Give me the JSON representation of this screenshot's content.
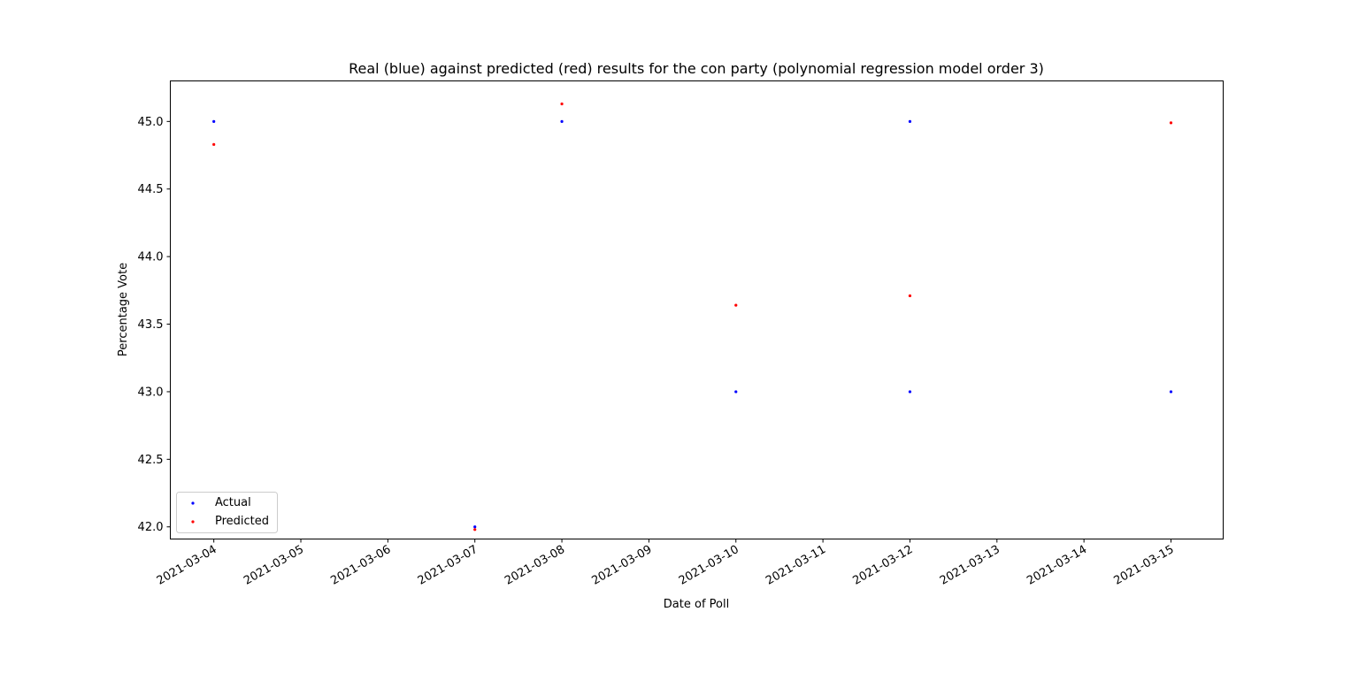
{
  "chart_data": {
    "type": "scatter",
    "title": "Real (blue) against predicted (red) results for the con party (polynomial regression model order 3)",
    "xlabel": "Date of Poll",
    "ylabel": "Percentage Vote",
    "x_ticks": [
      "2021-03-04",
      "2021-03-05",
      "2021-03-06",
      "2021-03-07",
      "2021-03-08",
      "2021-03-09",
      "2021-03-10",
      "2021-03-11",
      "2021-03-12",
      "2021-03-13",
      "2021-03-14",
      "2021-03-15"
    ],
    "y_ticks": [
      "42.0",
      "42.5",
      "43.0",
      "43.5",
      "44.0",
      "44.5",
      "45.0"
    ],
    "xlim": [
      "2021-03-03 12:00",
      "2021-03-15 14:24"
    ],
    "ylim": [
      41.91,
      45.3
    ],
    "grid": false,
    "legend_position": "lower-left",
    "series": [
      {
        "name": "Actual",
        "color": "#0000ff",
        "points": [
          {
            "x": "2021-03-04",
            "y": 45.0
          },
          {
            "x": "2021-03-07",
            "y": 42.0
          },
          {
            "x": "2021-03-08",
            "y": 45.0
          },
          {
            "x": "2021-03-10",
            "y": 43.0
          },
          {
            "x": "2021-03-12",
            "y": 45.0
          },
          {
            "x": "2021-03-12",
            "y": 43.0
          },
          {
            "x": "2021-03-15",
            "y": 43.0
          }
        ]
      },
      {
        "name": "Predicted",
        "color": "#ff0000",
        "points": [
          {
            "x": "2021-03-04",
            "y": 44.83
          },
          {
            "x": "2021-03-07",
            "y": 41.98
          },
          {
            "x": "2021-03-08",
            "y": 45.13
          },
          {
            "x": "2021-03-10",
            "y": 43.64
          },
          {
            "x": "2021-03-12",
            "y": 43.71
          },
          {
            "x": "2021-03-15",
            "y": 44.99
          }
        ]
      }
    ]
  }
}
